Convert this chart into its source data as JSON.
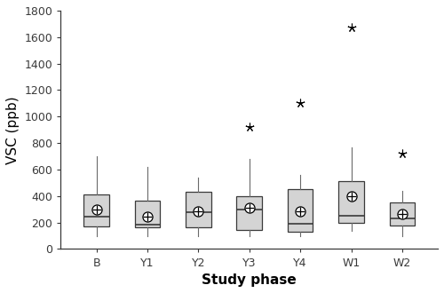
{
  "categories": [
    "B",
    "Y1",
    "Y2",
    "Y3",
    "Y4",
    "W1",
    "W2"
  ],
  "boxes": [
    {
      "q1": 170,
      "median": 245,
      "q3": 415,
      "mean": 300,
      "whisker_low": 100,
      "whisker_high": 700,
      "outliers": []
    },
    {
      "q1": 165,
      "median": 185,
      "q3": 365,
      "mean": 245,
      "whisker_low": 100,
      "whisker_high": 620,
      "outliers": []
    },
    {
      "q1": 165,
      "median": 275,
      "q3": 430,
      "mean": 285,
      "whisker_low": 100,
      "whisker_high": 540,
      "outliers": []
    },
    {
      "q1": 145,
      "median": 295,
      "q3": 400,
      "mean": 310,
      "whisker_low": 100,
      "whisker_high": 680,
      "outliers": [
        920
      ]
    },
    {
      "q1": 130,
      "median": 190,
      "q3": 450,
      "mean": 285,
      "whisker_low": 100,
      "whisker_high": 560,
      "outliers": [
        1100
      ]
    },
    {
      "q1": 195,
      "median": 250,
      "q3": 510,
      "mean": 400,
      "whisker_low": 140,
      "whisker_high": 770,
      "outliers": [
        1670
      ]
    },
    {
      "q1": 175,
      "median": 230,
      "q3": 355,
      "mean": 265,
      "whisker_low": 100,
      "whisker_high": 440,
      "outliers": [
        720
      ]
    }
  ],
  "ylim": [
    0,
    1800
  ],
  "yticks": [
    0,
    200,
    400,
    600,
    800,
    1000,
    1200,
    1400,
    1600,
    1800
  ],
  "ylabel": "VSC (ppb)",
  "xlabel": "Study phase",
  "box_facecolor": "#d4d4d4",
  "box_edgecolor": "#3a3a3a",
  "median_color": "#3a3a3a",
  "whisker_color": "#6a6a6a",
  "mean_color": "#000000",
  "outlier_color": "#000000",
  "background_color": "#ffffff",
  "figsize": [
    5.0,
    3.3
  ],
  "dpi": 100,
  "box_width": 0.5,
  "tick_fontsize": 9,
  "label_fontsize": 11
}
